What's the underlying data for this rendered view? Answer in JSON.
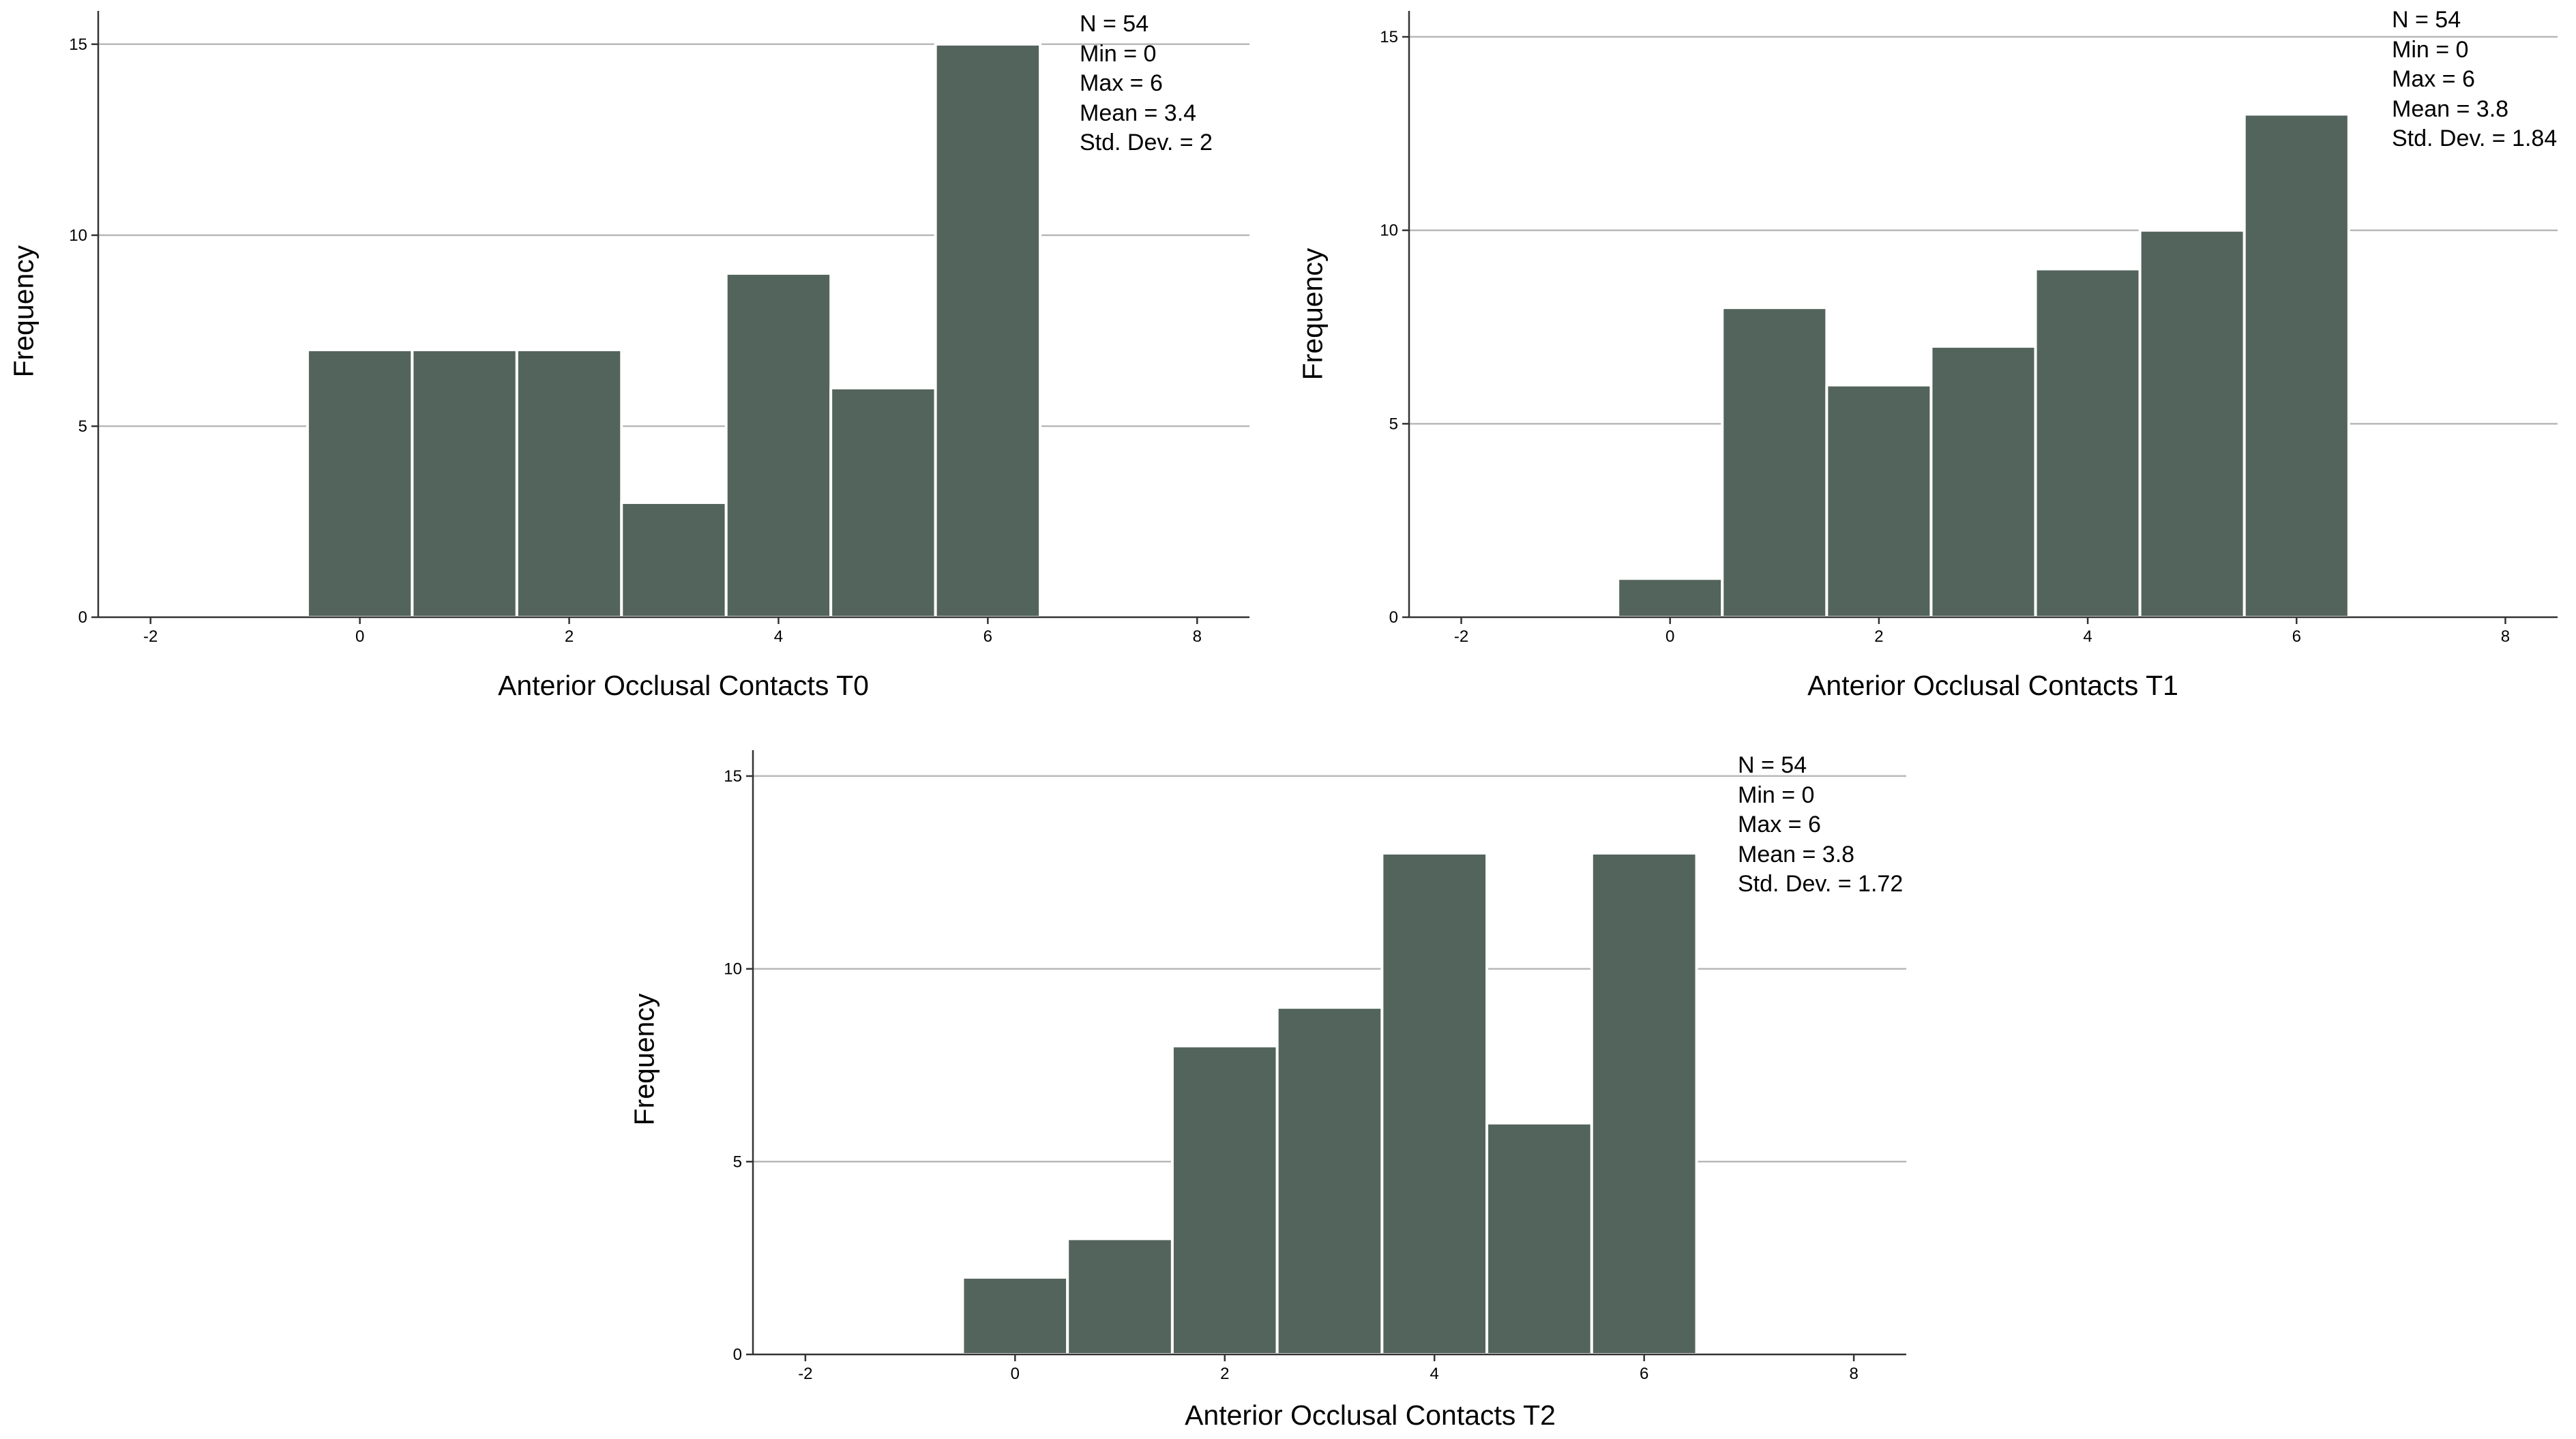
{
  "colors": {
    "bar": "#53645c",
    "bar_edge": "#ffffff",
    "axis": "#333333",
    "grid": "#b8b8b8",
    "text": "#000000"
  },
  "chart_data": [
    {
      "type": "bar",
      "title": "",
      "xlabel": "Anterior Occlusal Contacts T0",
      "ylabel": "Frequency",
      "x": [
        0,
        1,
        2,
        3,
        4,
        5,
        6
      ],
      "values": [
        7,
        7,
        7,
        3,
        9,
        6,
        15
      ],
      "xlim": [
        -2.5,
        8.5
      ],
      "ylim": [
        0,
        15.8
      ],
      "xticks": [
        "-2",
        "0",
        "2",
        "4",
        "6",
        "8"
      ],
      "yticks": [
        "0",
        "5",
        "10",
        "15"
      ],
      "grid": true,
      "legend": "top-right",
      "stats": [
        "N = 54",
        "Min = 0",
        "Max = 6",
        "Mean = 3.4",
        "Std. Dev. = 2"
      ]
    },
    {
      "type": "bar",
      "title": "",
      "xlabel": "Anterior Occlusal Contacts T1",
      "ylabel": "Frequency",
      "x": [
        0,
        1,
        2,
        3,
        4,
        5,
        6
      ],
      "values": [
        1,
        8,
        6,
        7,
        9,
        10,
        13
      ],
      "xlim": [
        -2.5,
        8.5
      ],
      "ylim": [
        0,
        15.6
      ],
      "xticks": [
        "-2",
        "0",
        "2",
        "4",
        "6",
        "8"
      ],
      "yticks": [
        "0",
        "5",
        "10",
        "15"
      ],
      "grid": true,
      "legend": "top-right",
      "stats": [
        "N = 54",
        "Min = 0",
        "Max = 6",
        "Mean = 3.8",
        "Std. Dev. = 1.84"
      ]
    },
    {
      "type": "bar",
      "title": "",
      "xlabel": "Anterior Occlusal Contacts T2",
      "ylabel": "Frequency",
      "x": [
        0,
        1,
        2,
        3,
        4,
        5,
        6
      ],
      "values": [
        2,
        3,
        8,
        9,
        13,
        6,
        13
      ],
      "xlim": [
        -2.5,
        8.5
      ],
      "ylim": [
        0,
        15.6
      ],
      "xticks": [
        "-2",
        "0",
        "2",
        "4",
        "6",
        "8"
      ],
      "yticks": [
        "0",
        "5",
        "10",
        "15"
      ],
      "grid": true,
      "legend": "top-right",
      "stats": [
        "N = 54",
        "Min = 0",
        "Max = 6",
        "Mean = 3.8",
        "Std. Dev. = 1.72"
      ]
    }
  ]
}
